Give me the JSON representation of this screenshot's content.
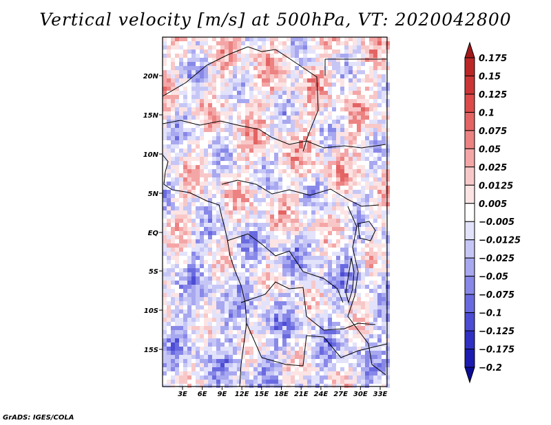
{
  "title": "Vertical velocity [m/s] at 500hPa, VT: 2020042800",
  "footer": "GrADS: IGES/COLA",
  "lon_ticks": [
    "3E",
    "6E",
    "9E",
    "12E",
    "15E",
    "18E",
    "21E",
    "24E",
    "27E",
    "30E",
    "33E"
  ],
  "lat_ticks": [
    "20N",
    "15N",
    "10N",
    "5N",
    "EQ",
    "5S",
    "10S",
    "15S"
  ],
  "colorbar": {
    "levels": [
      "0.175",
      "0.15",
      "0.125",
      "0.1",
      "0.075",
      "0.05",
      "0.025",
      "0.0125",
      "0.005",
      "-0.005",
      "-0.0125",
      "-0.025",
      "-0.05",
      "-0.075",
      "-0.1",
      "-0.125",
      "-0.175",
      "-0.2"
    ],
    "colors": [
      "#a11a1a",
      "#bb2727",
      "#cc3535",
      "#dc4a4a",
      "#e46464",
      "#ec8282",
      "#f4a6a6",
      "#f8c8c8",
      "#fce4e4",
      "#ffffff",
      "#e2e2fb",
      "#c6c6f6",
      "#a8a8f0",
      "#8888e8",
      "#6a6ae0",
      "#4c4cd4",
      "#3030c4",
      "#1c1cb0",
      "#0c0c96"
    ]
  },
  "field_colors": {
    "background": "#ffffff",
    "border": "#000000"
  }
}
